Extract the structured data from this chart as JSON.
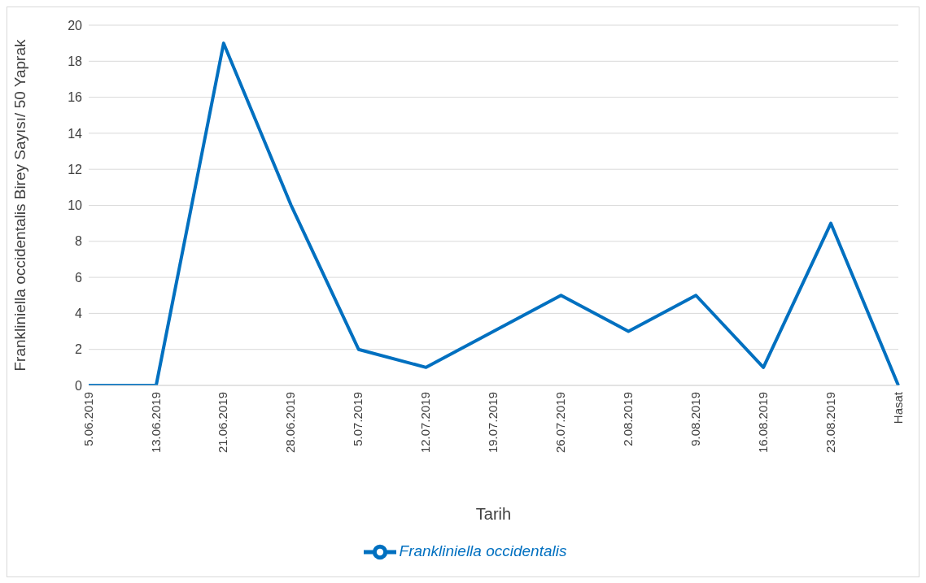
{
  "chart_data": {
    "type": "line",
    "xlabel": "Tarih",
    "ylabel": "Frankliniella occidentalis Birey Sayısı/ 50 Yaprak",
    "categories": [
      "5.06.2019",
      "13.06.2019",
      "21.06.2019",
      "28.06.2019",
      "5.07.2019",
      "12.07.2019",
      "19.07.2019",
      "26.07.2019",
      "2.08.2019",
      "9.08.2019",
      "16.08.2019",
      "23.08.2019",
      "Hasat"
    ],
    "series": [
      {
        "name": "Frankliniella occidentalis",
        "color": "#0070c0",
        "values": [
          0,
          0,
          19,
          10,
          2,
          1,
          3,
          5,
          3,
          5,
          1,
          9,
          0
        ]
      }
    ],
    "ylim": [
      0,
      20
    ],
    "yticks": [
      0,
      2,
      4,
      6,
      8,
      10,
      12,
      14,
      16,
      18,
      20
    ],
    "grid": "y",
    "legend": "bottom",
    "marker": "none"
  }
}
